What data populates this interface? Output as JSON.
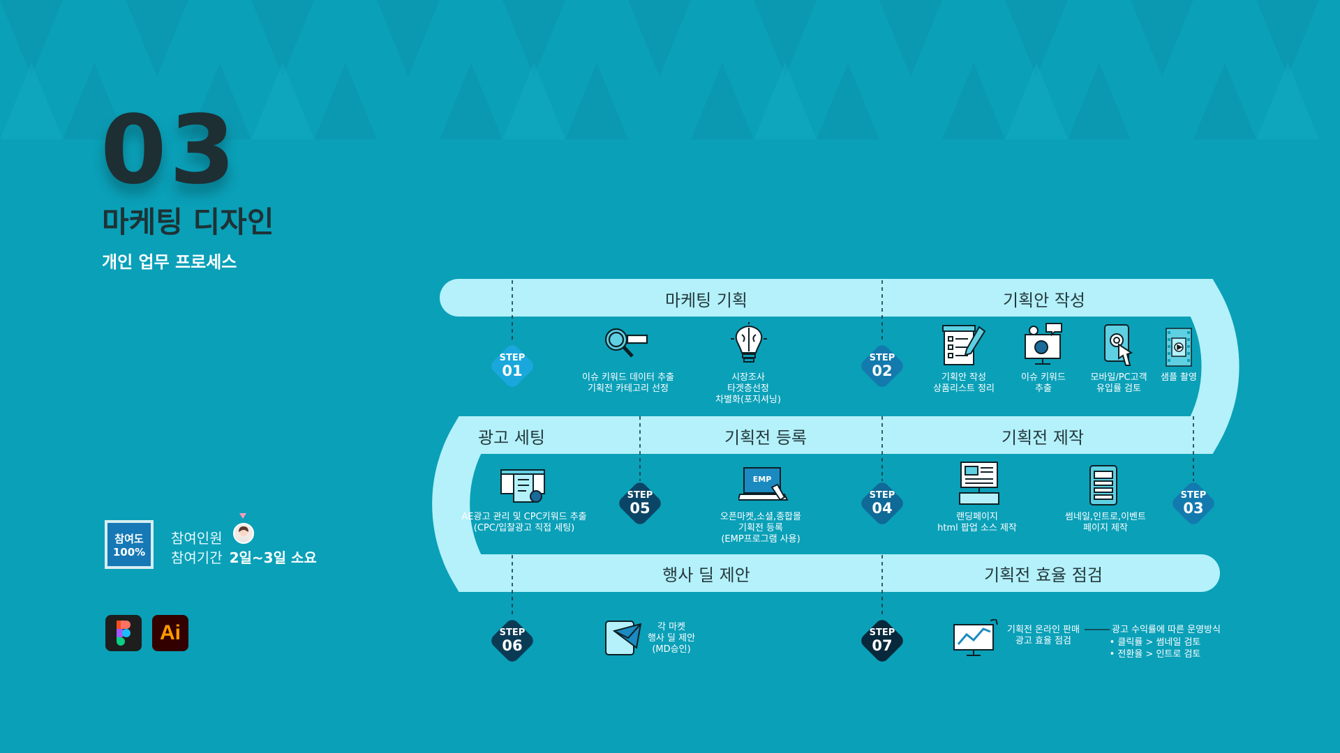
{
  "hero": {
    "number": "03",
    "title": "마케팅 디자인",
    "subtitle": "개인 업무 프로세스"
  },
  "participation": {
    "badge_line1": "참여도",
    "badge_line2": "100%",
    "members_label": "참여인원",
    "period_label": "참여기간",
    "period_value": "2일~3일 소요"
  },
  "tools": {
    "ai_label": "Ai"
  },
  "sections": {
    "marketing_plan": "마케팅 기획",
    "proposal": "기획안 작성",
    "ad_setting": "광고 세팅",
    "event_register": "기획전 등록",
    "event_production": "기획전 제작",
    "deal_proposal": "행사 딜 제안",
    "efficiency_check": "기획전 효율 점검"
  },
  "steps": [
    {
      "label": "STEP",
      "num": "01"
    },
    {
      "label": "STEP",
      "num": "02"
    },
    {
      "label": "STEP",
      "num": "03"
    },
    {
      "label": "STEP",
      "num": "04"
    },
    {
      "label": "STEP",
      "num": "05"
    },
    {
      "label": "STEP",
      "num": "06"
    },
    {
      "label": "STEP",
      "num": "07"
    }
  ],
  "tasks": {
    "keyword_extract": "이슈 키워드 데이터 추출\n기획전 카테고리 선정",
    "market_research": "시장조사\n타겟층선정\n차별화(포지셔닝)",
    "proposal_write": "기획안 작성\n상품리스트 정리",
    "issue_keyword": "이슈 키워드\n추출",
    "inflow_review": "모바일/PC고객\n유입률 검토",
    "sample_shoot": "샘플 촬영",
    "ad_manage": "AE광고 관리 및 CPC키워드 추출\n(CPC/입찰광고 직접 세팅)",
    "open_market": "오픈마켓,소셜,종합몰\n기획전 등록\n(EMP프로그램 사용)",
    "landing_page": "랜딩페이지\nhtml 팝업 소스 제작",
    "thumbnail": "썸네일,인트로,이벤트\n페이지 제작",
    "deal": "각 마켓\n행사 딜 제안\n(MD승인)",
    "online_sales": "기획전 온라인 판매\n광고 효율 점검",
    "ad_revenue": "광고 수익률에 따른 운영방식",
    "ad_bullet1": "• 클릭률 > 썸네일 검토",
    "ad_bullet2": "• 전환율 > 인트로 검토",
    "emp_tag": "EMP"
  },
  "colors": {
    "background": "#0aa0b8",
    "track": "#b4f1fa",
    "step_light": "#1aa8dc",
    "step_mid": "#137aae",
    "step_dark": "#0b4566",
    "step_darkest": "#08283b",
    "text_dark": "#24393d"
  }
}
